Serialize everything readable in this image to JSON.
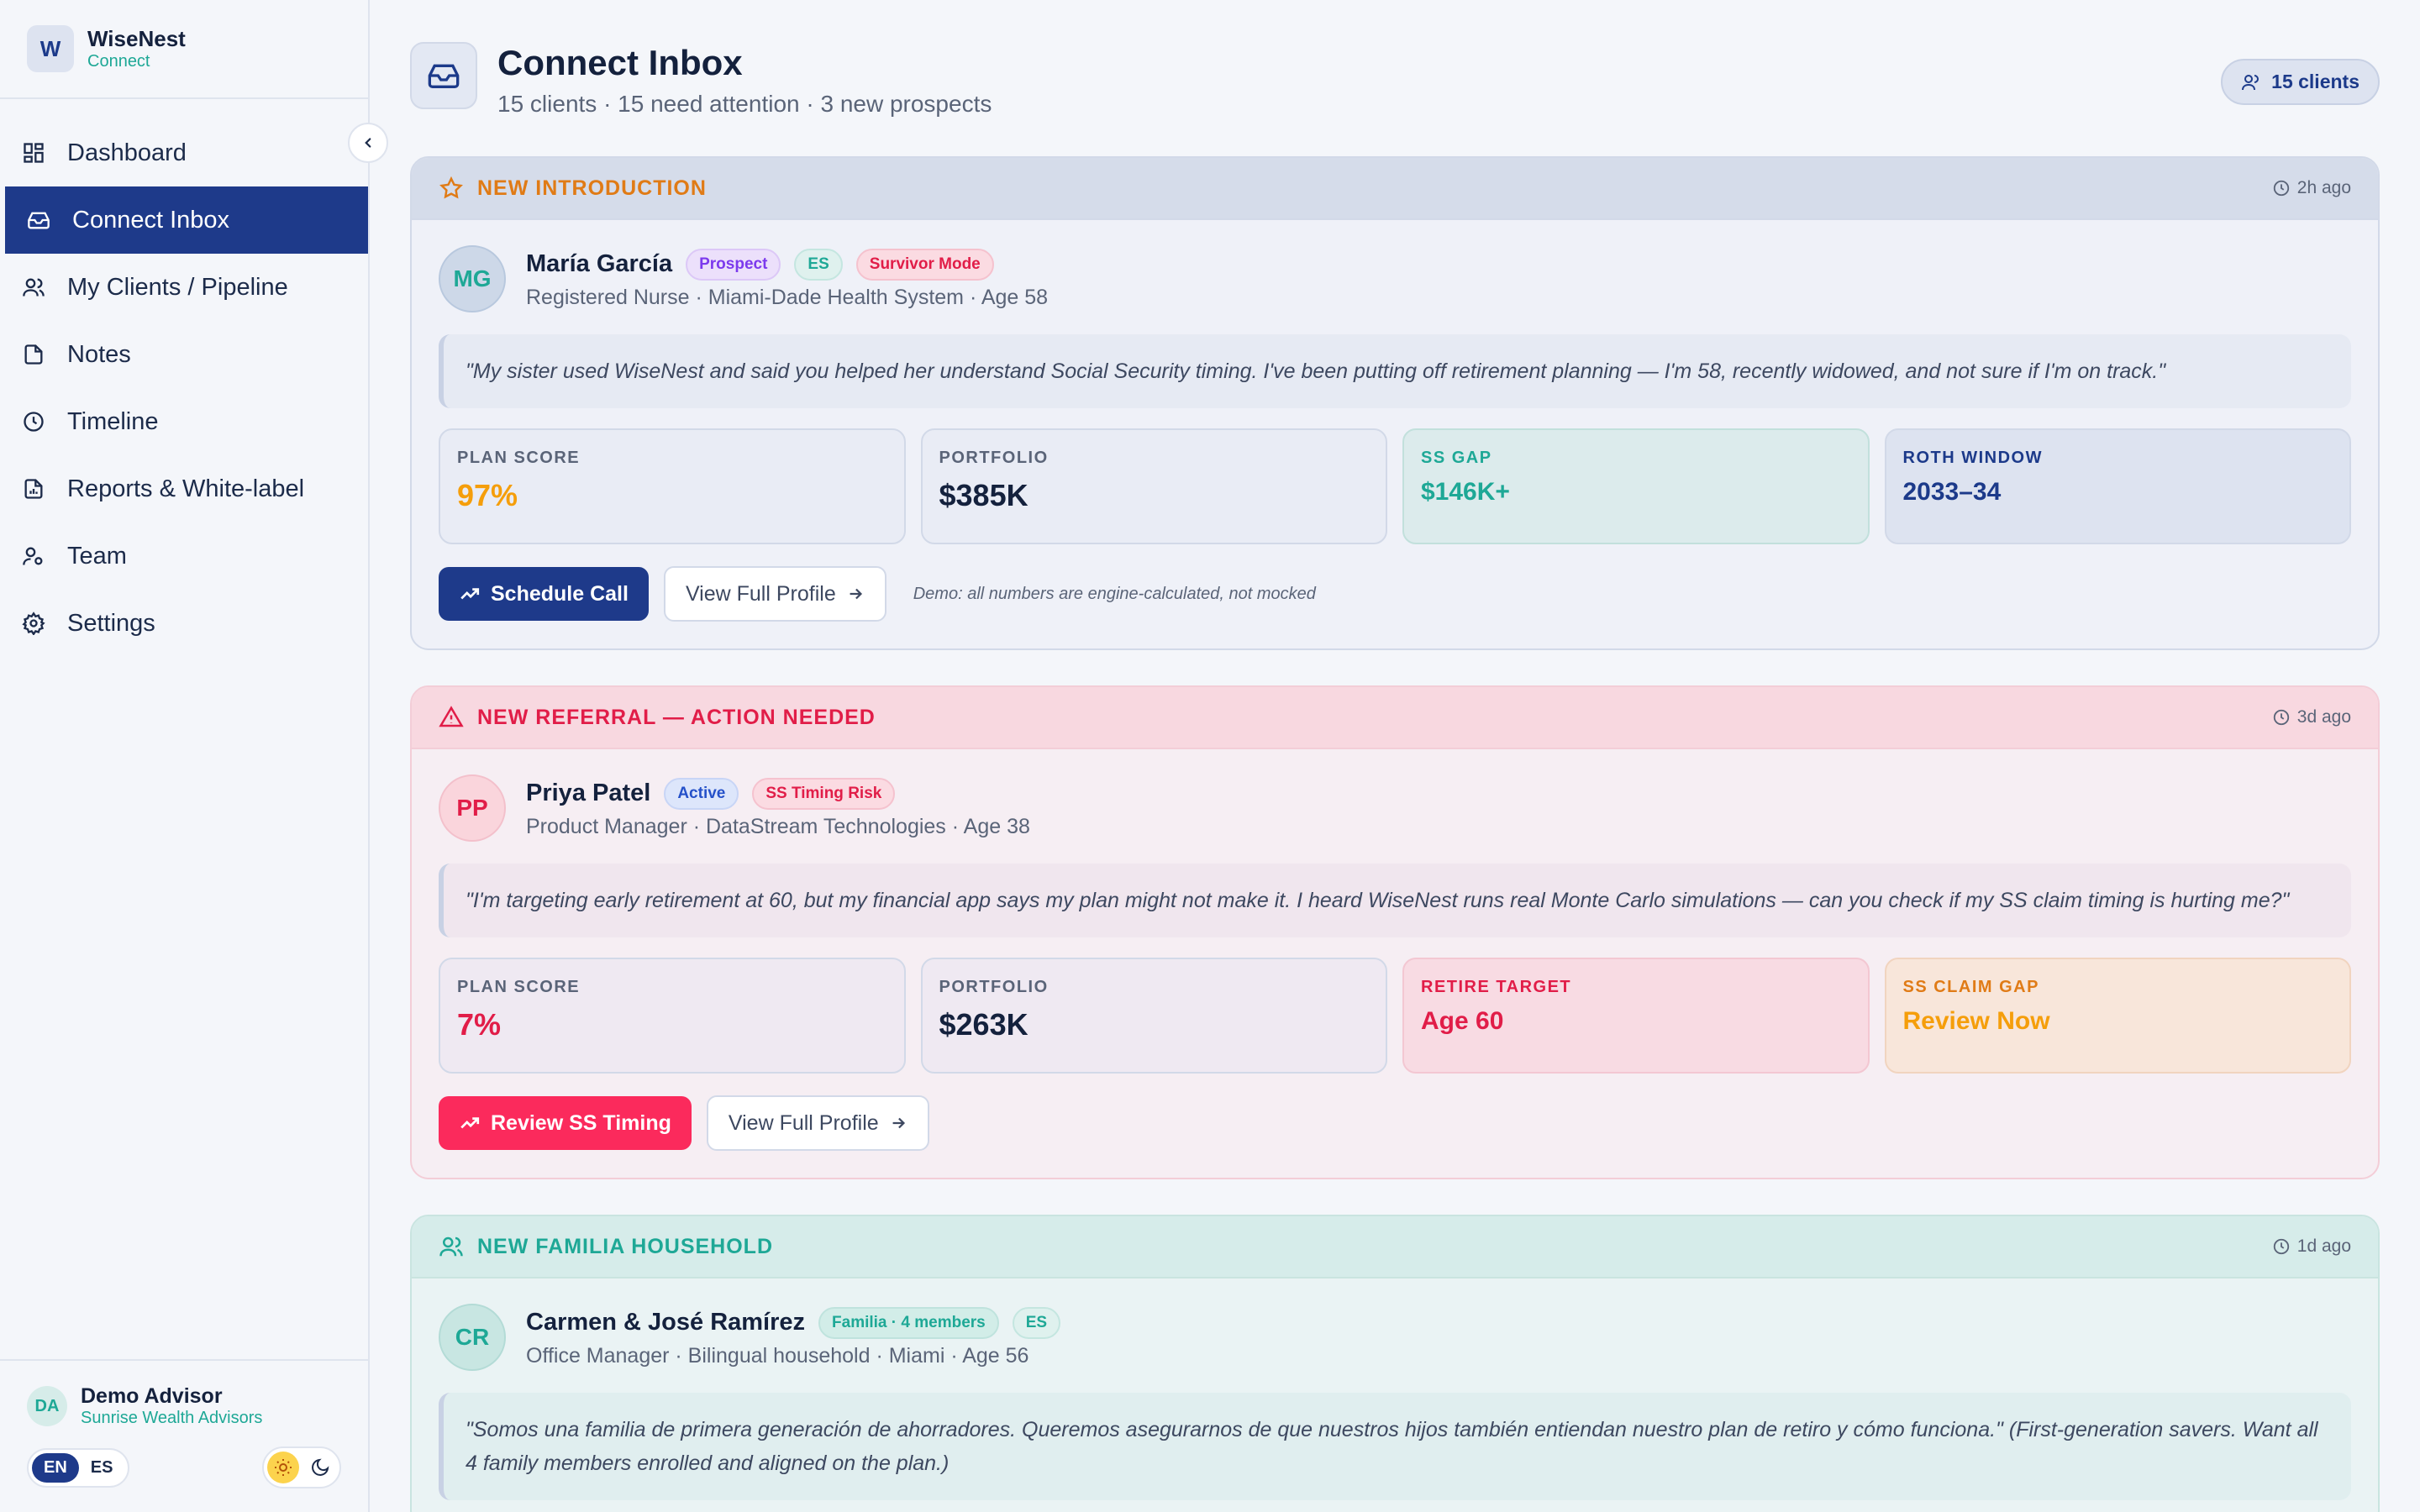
{
  "brand": {
    "logo_letter": "W",
    "name": "WiseNest",
    "sub": "Connect"
  },
  "nav": [
    {
      "label": "Dashboard",
      "icon": "dashboard-icon",
      "active": false
    },
    {
      "label": "Connect Inbox",
      "icon": "inbox-icon",
      "active": true
    },
    {
      "label": "My Clients / Pipeline",
      "icon": "users-icon",
      "active": false
    },
    {
      "label": "Notes",
      "icon": "note-icon",
      "active": false
    },
    {
      "label": "Timeline",
      "icon": "clock-icon",
      "active": false
    },
    {
      "label": "Reports & White-label",
      "icon": "report-icon",
      "active": false
    },
    {
      "label": "Team",
      "icon": "team-icon",
      "active": false
    },
    {
      "label": "Settings",
      "icon": "gear-icon",
      "active": false
    }
  ],
  "advisor": {
    "initials": "DA",
    "name": "Demo Advisor",
    "org": "Sunrise Wealth Advisors"
  },
  "lang": {
    "en": "EN",
    "es": "ES"
  },
  "header": {
    "title": "Connect Inbox",
    "subtitle": "15 clients · 15 need attention · 3 new prospects",
    "clients_pill": "15 clients"
  },
  "cards": [
    {
      "head": "NEW INTRODUCTION",
      "time": "2h ago",
      "initials": "MG",
      "name": "María García",
      "badges": [
        "Prospect",
        "ES",
        "Survivor Mode"
      ],
      "meta": "Registered Nurse · Miami-Dade Health System · Age 58",
      "quote": "\"My sister used WiseNest and said you helped her understand Social Security timing. I've been putting off retirement planning — I'm 58, recently widowed, and not sure if I'm on track.\"",
      "stats": [
        {
          "label": "PLAN SCORE",
          "value": "97%"
        },
        {
          "label": "PORTFOLIO",
          "value": "$385K"
        },
        {
          "label": "SS GAP",
          "value": "$146K+"
        },
        {
          "label": "ROTH WINDOW",
          "value": "2033–34"
        }
      ],
      "primary": "Schedule Call",
      "secondary": "View Full Profile",
      "note": "Demo: all numbers are engine-calculated, not mocked"
    },
    {
      "head": "NEW REFERRAL — ACTION NEEDED",
      "time": "3d ago",
      "initials": "PP",
      "name": "Priya Patel",
      "badges": [
        "Active",
        "SS Timing Risk"
      ],
      "meta": "Product Manager · DataStream Technologies · Age 38",
      "quote": "\"I'm targeting early retirement at 60, but my financial app says my plan might not make it. I heard WiseNest runs real Monte Carlo simulations — can you check if my SS claim timing is hurting me?\"",
      "stats": [
        {
          "label": "PLAN SCORE",
          "value": "7%"
        },
        {
          "label": "PORTFOLIO",
          "value": "$263K"
        },
        {
          "label": "RETIRE TARGET",
          "value": "Age 60"
        },
        {
          "label": "SS CLAIM GAP",
          "value": "Review Now"
        }
      ],
      "primary": "Review SS Timing",
      "secondary": "View Full Profile"
    },
    {
      "head": "NEW FAMILIA HOUSEHOLD",
      "time": "1d ago",
      "initials": "CR",
      "name": "Carmen & José Ramírez",
      "badges": [
        "Familia · 4 members",
        "ES"
      ],
      "meta": "Office Manager · Bilingual household · Miami · Age 56",
      "quote": "\"Somos una familia de primera generación de ahorradores. Queremos asegurarnos de que nuestros hijos también entiendan nuestro plan de retiro y cómo funciona.\" (First-generation savers. Want all 4 family members enrolled and aligned on the plan.)"
    }
  ]
}
